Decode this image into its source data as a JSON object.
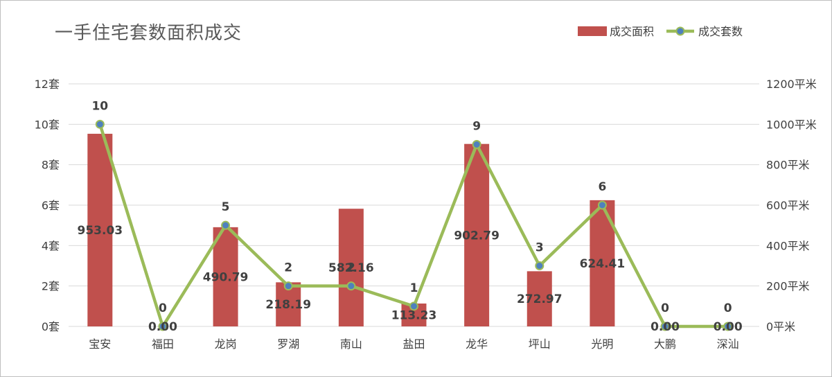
{
  "chart_data": {
    "type": "bar+line",
    "title": "一手住宅套数面积成交",
    "categories": [
      "宝安",
      "福田",
      "龙岗",
      "罗湖",
      "南山",
      "盐田",
      "龙华",
      "坪山",
      "光明",
      "大鹏",
      "深汕"
    ],
    "series": [
      {
        "name": "成交面积",
        "type": "bar",
        "axis": "right",
        "values": [
          953.03,
          0,
          490.79,
          218.19,
          582.16,
          113.23,
          902.79,
          272.97,
          624.41,
          0,
          0
        ],
        "labels": [
          "953.03",
          "0.00",
          "490.79",
          "218.19",
          "582.16",
          "113.23",
          "902.79",
          "272.97",
          "624.41",
          "0.00",
          "0.00"
        ]
      },
      {
        "name": "成交套数",
        "type": "line",
        "axis": "left",
        "values": [
          10,
          0,
          5,
          2,
          2,
          1,
          9,
          3,
          6,
          0,
          0
        ],
        "labels": [
          "10",
          "0",
          "5",
          "2",
          "2",
          "1",
          "9",
          "3",
          "6",
          "0",
          "0"
        ]
      }
    ],
    "y_left": {
      "range": [
        0,
        12
      ],
      "ticks": [
        "0套",
        "2套",
        "4套",
        "6套",
        "8套",
        "10套",
        "12套"
      ]
    },
    "y_right": {
      "range": [
        0,
        1200
      ],
      "ticks": [
        "0平米",
        "200平米",
        "400平米",
        "600平米",
        "800平米",
        "1000平米",
        "1200平米"
      ]
    },
    "grid": true,
    "legend_position": "top-right",
    "colors": {
      "bar": "#c0504d",
      "line": "#9bbb59",
      "marker_fill": "#4f81bd",
      "grid": "#d9d9d9",
      "text": "#404040"
    }
  }
}
